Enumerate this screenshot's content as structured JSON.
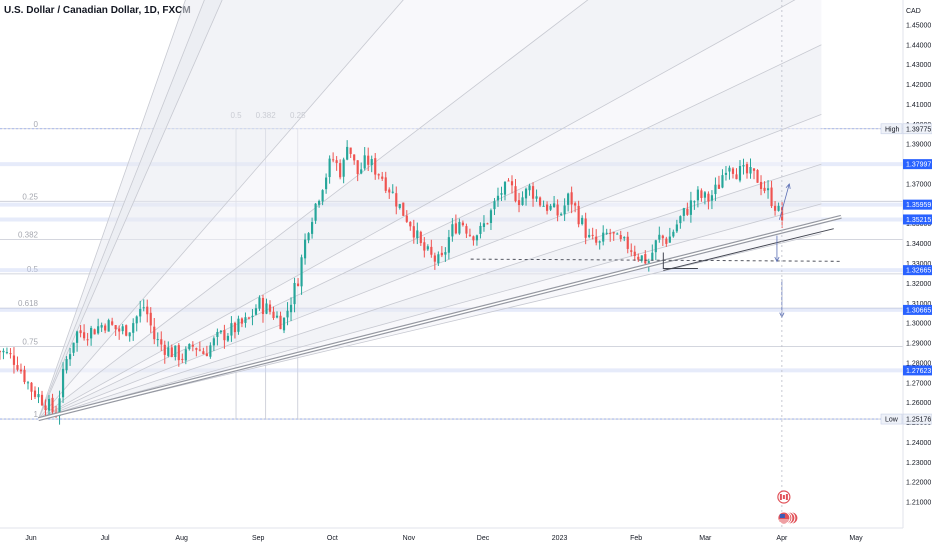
{
  "header": {
    "title": "U.S. Dollar / Canadian Dollar, 1D, FXCM"
  },
  "chart_data": {
    "type": "candlestick",
    "symbol": "USDCAD",
    "interval": "1D",
    "currency_label": "CAD",
    "ylim": [
      1.203,
      1.459
    ],
    "y_ticks": [
      1.21,
      1.22,
      1.23,
      1.24,
      1.25,
      1.26,
      1.27,
      1.28,
      1.29,
      1.3,
      1.31,
      1.32,
      1.33,
      1.34,
      1.35,
      1.36,
      1.37,
      1.38,
      1.39,
      1.4,
      1.41,
      1.42,
      1.43,
      1.44,
      1.45
    ],
    "y_tick_labels": [
      "1.21000",
      "1.22000",
      "1.23000",
      "1.24000",
      "1.25000",
      "1.26000",
      "1.27000",
      "1.28000",
      "1.29000",
      "1.30000",
      "1.31000",
      "1.32000",
      "1.33000",
      "1.34000",
      "1.35000",
      "1.36000",
      "1.37000",
      "1.38000",
      "1.39000",
      "1.40000",
      "1.41000",
      "1.42000",
      "1.43000",
      "1.44000",
      "1.45000"
    ],
    "x_labels": [
      {
        "label": "Jun",
        "day": 0
      },
      {
        "label": "Jul",
        "day": 30
      },
      {
        "label": "Aug",
        "day": 61
      },
      {
        "label": "Sep",
        "day": 92
      },
      {
        "label": "Oct",
        "day": 122
      },
      {
        "label": "Nov",
        "day": 153
      },
      {
        "label": "Dec",
        "day": 183
      },
      {
        "label": "2023",
        "day": 214
      },
      {
        "label": "Feb",
        "day": 245
      },
      {
        "label": "Mar",
        "day": 273
      },
      {
        "label": "Apr",
        "day": 304
      },
      {
        "label": "May",
        "day": 334
      }
    ],
    "price_waypoints": [
      [
        -12,
        1.286
      ],
      [
        -6,
        1.281
      ],
      [
        0,
        1.267
      ],
      [
        6,
        1.26
      ],
      [
        10,
        1.254
      ],
      [
        14,
        1.28
      ],
      [
        18,
        1.295
      ],
      [
        24,
        1.296
      ],
      [
        30,
        1.3
      ],
      [
        36,
        1.296
      ],
      [
        40,
        1.298
      ],
      [
        46,
        1.309
      ],
      [
        50,
        1.292
      ],
      [
        56,
        1.286
      ],
      [
        62,
        1.283
      ],
      [
        66,
        1.289
      ],
      [
        70,
        1.285
      ],
      [
        76,
        1.293
      ],
      [
        82,
        1.297
      ],
      [
        88,
        1.301
      ],
      [
        92,
        1.31
      ],
      [
        98,
        1.305
      ],
      [
        102,
        1.3
      ],
      [
        108,
        1.322
      ],
      [
        112,
        1.348
      ],
      [
        118,
        1.37
      ],
      [
        122,
        1.383
      ],
      [
        126,
        1.375
      ],
      [
        128,
        1.392
      ],
      [
        132,
        1.375
      ],
      [
        136,
        1.382
      ],
      [
        142,
        1.374
      ],
      [
        146,
        1.366
      ],
      [
        150,
        1.357
      ],
      [
        154,
        1.35
      ],
      [
        158,
        1.338
      ],
      [
        162,
        1.333
      ],
      [
        166,
        1.33
      ],
      [
        170,
        1.346
      ],
      [
        174,
        1.352
      ],
      [
        178,
        1.345
      ],
      [
        182,
        1.346
      ],
      [
        186,
        1.355
      ],
      [
        190,
        1.366
      ],
      [
        194,
        1.368
      ],
      [
        198,
        1.362
      ],
      [
        202,
        1.368
      ],
      [
        206,
        1.361
      ],
      [
        210,
        1.358
      ],
      [
        214,
        1.354
      ],
      [
        218,
        1.364
      ],
      [
        222,
        1.353
      ],
      [
        226,
        1.342
      ],
      [
        230,
        1.339
      ],
      [
        234,
        1.346
      ],
      [
        238,
        1.34
      ],
      [
        242,
        1.339
      ],
      [
        246,
        1.334
      ],
      [
        250,
        1.331
      ],
      [
        254,
        1.343
      ],
      [
        258,
        1.342
      ],
      [
        262,
        1.351
      ],
      [
        266,
        1.358
      ],
      [
        270,
        1.364
      ],
      [
        274,
        1.362
      ],
      [
        278,
        1.368
      ],
      [
        282,
        1.382
      ],
      [
        286,
        1.376
      ],
      [
        290,
        1.375
      ],
      [
        294,
        1.373
      ],
      [
        298,
        1.366
      ],
      [
        302,
        1.358
      ],
      [
        304,
        1.351
      ]
    ],
    "candle_day_range": [
      -14,
      305
    ],
    "candle_step_days": 1.42,
    "last_close": 1.3515,
    "colors": {
      "up": "#26a69a",
      "down": "#ef5350"
    },
    "price_badges": [
      {
        "value": 1.39775,
        "text": "1.39775",
        "left_label": "High",
        "style": "light"
      },
      {
        "value": 1.37997,
        "text": "1.37997",
        "left_label": "",
        "style": "blue"
      },
      {
        "value": 1.35959,
        "text": "1.35959",
        "left_label": "",
        "style": "blue"
      },
      {
        "value": 1.35215,
        "text": "1.35215",
        "left_label": "",
        "style": "blue"
      },
      {
        "value": 1.32665,
        "text": "1.32665",
        "left_label": "",
        "style": "blue"
      },
      {
        "value": 1.30665,
        "text": "1.30665",
        "left_label": "",
        "style": "blue"
      },
      {
        "value": 1.27623,
        "text": "1.27623",
        "left_label": "",
        "style": "blue"
      },
      {
        "value": 1.25176,
        "text": "1.25176",
        "left_label": "Low",
        "style": "light"
      }
    ],
    "fib_retracement": {
      "levels": [
        {
          "label": "0",
          "value": 1.39775
        },
        {
          "label": "0.25",
          "value": 1.36126
        },
        {
          "label": "0.382",
          "value": 1.34199
        },
        {
          "label": "0.5",
          "value": 1.32476
        },
        {
          "label": "0.618",
          "value": 1.30753
        },
        {
          "label": "0.75",
          "value": 1.28826
        },
        {
          "label": "1",
          "value": 1.25176
        }
      ],
      "time_levels": [
        {
          "label": "0.5",
          "day": 83
        },
        {
          "label": "0.382",
          "day": 95
        },
        {
          "label": "0.25",
          "day": 108
        }
      ]
    },
    "fan_origin": {
      "day": 3,
      "value": 1.2517
    },
    "fan_targets": [
      {
        "day": 81,
        "value": 1.528
      },
      {
        "day": 140,
        "value": 1.64
      },
      {
        "day": 165,
        "value": 1.76
      },
      {
        "day": 240,
        "value": 1.59
      },
      {
        "day": 305,
        "value": 1.538
      },
      {
        "day": 320,
        "value": 1.47
      },
      {
        "day": 320,
        "value": 1.44
      },
      {
        "day": 320,
        "value": 1.405
      },
      {
        "day": 320,
        "value": 1.38
      },
      {
        "day": 320,
        "value": 1.36
      },
      {
        "day": 320,
        "value": 1.345
      }
    ],
    "trendlines": [
      {
        "from": [
          3,
          1.2517
        ],
        "to": [
          328,
          1.3535
        ],
        "style": "double"
      },
      {
        "from": [
          256,
          1.3265
        ],
        "to": [
          325,
          1.3475
        ],
        "style": "solid"
      },
      {
        "from": [
          178,
          1.3322
        ],
        "to": [
          328,
          1.3311
        ],
        "style": "dashed"
      }
    ]
  }
}
